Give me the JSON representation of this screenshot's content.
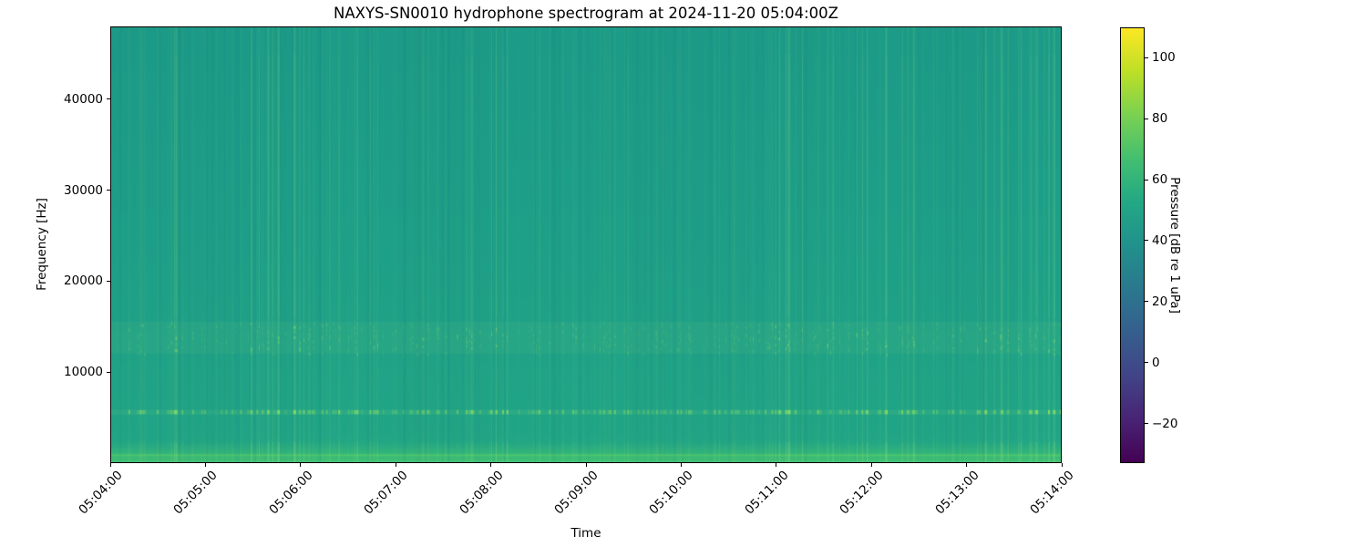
{
  "figure": {
    "background": "#ffffff"
  },
  "chart_data": {
    "type": "heatmap",
    "subtype": "spectrogram",
    "title": "NAXYS-SN0010 hydrophone spectrogram at 2024-11-20 05:04:00Z",
    "xlabel": "Time",
    "ylabel": "Frequency [Hz]",
    "x_tick_labels": [
      "05:04:00",
      "05:05:00",
      "05:06:00",
      "05:07:00",
      "05:08:00",
      "05:09:00",
      "05:10:00",
      "05:11:00",
      "05:12:00",
      "05:13:00",
      "05:14:00"
    ],
    "x_range": [
      "05:04:00",
      "05:14:00"
    ],
    "y_ticks": [
      10000,
      20000,
      30000,
      40000
    ],
    "y_tick_labels": [
      "10000",
      "20000",
      "30000",
      "40000"
    ],
    "ylim": [
      0,
      48000
    ],
    "grid": false,
    "legend": "none",
    "colorbar": {
      "label": "Pressure [dB re 1 uPa]",
      "tick_labels": [
        "100",
        "80",
        "60",
        "40",
        "20",
        "0",
        "−20"
      ],
      "tick_values": [
        100,
        80,
        60,
        40,
        20,
        0,
        -20
      ],
      "vmin": -33,
      "vmax": 110,
      "colormap": "viridis",
      "orientation": "vertical",
      "stops": [
        {
          "pos": 0.0,
          "color": "#440154"
        },
        {
          "pos": 0.1,
          "color": "#482475"
        },
        {
          "pos": 0.2,
          "color": "#414487"
        },
        {
          "pos": 0.3,
          "color": "#355f8d"
        },
        {
          "pos": 0.4,
          "color": "#2a788e"
        },
        {
          "pos": 0.5,
          "color": "#21918c"
        },
        {
          "pos": 0.6,
          "color": "#22a884"
        },
        {
          "pos": 0.7,
          "color": "#44bf70"
        },
        {
          "pos": 0.8,
          "color": "#7ad151"
        },
        {
          "pos": 0.9,
          "color": "#bddf26"
        },
        {
          "pos": 1.0,
          "color": "#fde725"
        }
      ]
    },
    "content_summary": {
      "background_level_db": 52,
      "features": [
        {
          "name": "broadband-click-stripes",
          "type": "vertical-transients",
          "freq_range_hz": [
            0,
            48000
          ],
          "approx_level_db": "55-70",
          "note": "dense narrow vertical stripes across entire band, clustered in time"
        },
        {
          "name": "mid-band-dashes",
          "type": "tonal-band",
          "freq_range_hz": [
            12000,
            15500
          ],
          "approx_level_db": "60-75",
          "note": "semi-continuous band of short bright dashes"
        },
        {
          "name": "narrowband-line",
          "type": "tonal-line",
          "freq_hz": 5600,
          "approx_level_db": "70-85",
          "note": "bright dashed horizontal line"
        },
        {
          "name": "low-frequency-noise",
          "type": "band",
          "freq_range_hz": [
            0,
            2000
          ],
          "approx_level_db": "65-80",
          "note": "continuous brighter green band at the bottom, brightest near 0-900 Hz"
        }
      ]
    },
    "style": {
      "base_top": "#1d9c89",
      "base_mid": "#1fa189",
      "base_low": "#22a687",
      "base_bottom": "#2aad81",
      "stripe_rgb": "150,228,130",
      "dash_rgb": "165,232,105",
      "line_rgb": "160,234,92",
      "bottom_rgb": "80,205,110",
      "dark_stripe_rgba": "rgba(20,80,110,0.05)"
    }
  }
}
